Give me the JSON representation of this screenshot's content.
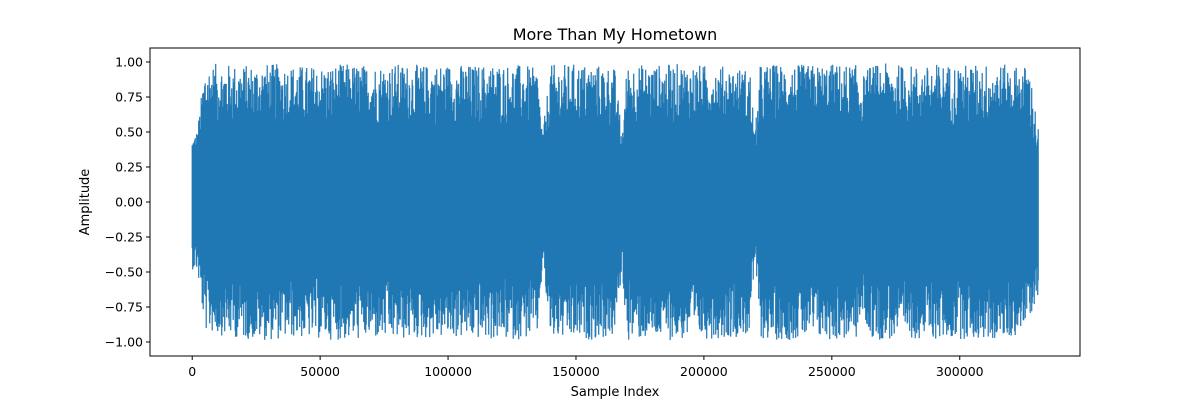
{
  "chart_data": {
    "type": "line",
    "title": "More Than My Hometown",
    "xlabel": "Sample Index",
    "ylabel": "Amplitude",
    "xlim": [
      -16500,
      347000
    ],
    "ylim": [
      -1.1,
      1.1
    ],
    "xticks": [
      0,
      50000,
      100000,
      150000,
      200000,
      250000,
      300000
    ],
    "xtick_labels": [
      "0",
      "50000",
      "100000",
      "150000",
      "200000",
      "250000",
      "300000"
    ],
    "yticks": [
      1.0,
      0.75,
      0.5,
      0.25,
      0.0,
      -0.25,
      -0.5,
      -0.75,
      -1.0
    ],
    "ytick_labels": [
      "1.00",
      "0.75",
      "0.50",
      "0.25",
      "0.00",
      "−0.25",
      "−0.50",
      "−0.75",
      "−1.00"
    ],
    "grid": false,
    "series_color": "#1f77b4",
    "series": [
      {
        "x_start": 0,
        "x_end": 330750,
        "envelope_x": [
          0,
          2000,
          5000,
          10000,
          20000,
          30000,
          40000,
          50000,
          60000,
          70000,
          80000,
          90000,
          100000,
          110000,
          120000,
          130000,
          135000,
          137000,
          140000,
          150000,
          160000,
          165000,
          168000,
          170000,
          180000,
          190000,
          200000,
          210000,
          218000,
          220000,
          222000,
          230000,
          240000,
          250000,
          260000,
          262000,
          265000,
          270000,
          280000,
          288000,
          290000,
          300000,
          310000,
          320000,
          325000,
          327000,
          330750
        ],
        "envelope_max": [
          0.48,
          0.52,
          0.98,
          0.99,
          0.98,
          0.99,
          0.98,
          0.97,
          0.99,
          0.98,
          0.99,
          0.98,
          0.99,
          0.98,
          0.99,
          0.98,
          0.95,
          0.49,
          0.98,
          0.99,
          0.98,
          0.97,
          0.5,
          0.99,
          0.98,
          0.99,
          0.98,
          0.97,
          0.95,
          0.5,
          0.98,
          0.99,
          0.98,
          0.99,
          0.98,
          0.9,
          0.98,
          0.99,
          0.98,
          0.97,
          0.99,
          0.98,
          0.99,
          0.98,
          0.97,
          0.99,
          0.52
        ],
        "envelope_min": [
          -0.48,
          -0.5,
          -0.92,
          -0.95,
          -0.98,
          -0.99,
          -0.97,
          -0.98,
          -0.99,
          -0.98,
          -0.99,
          -0.98,
          -0.97,
          -0.98,
          -0.99,
          -0.98,
          -0.95,
          -0.45,
          -0.98,
          -0.99,
          -0.98,
          -0.97,
          -0.5,
          -0.99,
          -0.98,
          -0.99,
          -0.98,
          -0.97,
          -0.95,
          -0.4,
          -0.98,
          -0.99,
          -0.98,
          -0.99,
          -0.98,
          -0.8,
          -0.98,
          -0.99,
          -0.98,
          -0.97,
          -0.99,
          -0.98,
          -0.99,
          -0.98,
          -0.9,
          -0.85,
          -0.66
        ]
      }
    ]
  }
}
